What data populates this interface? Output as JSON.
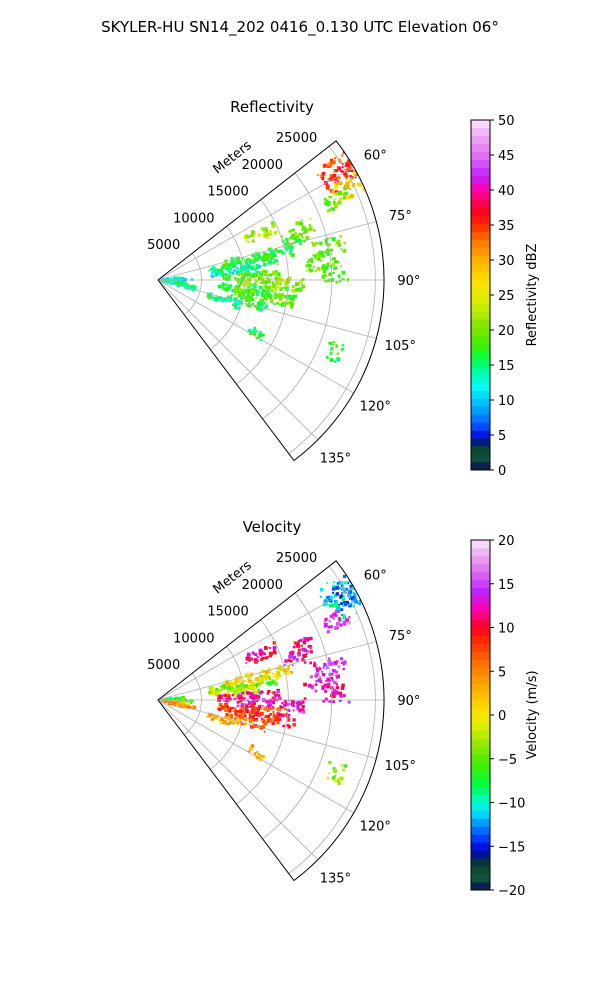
{
  "figure": {
    "suptitle": "SKYLER-HU  SN14_202  0416_0.130 UTC Elevation 06°"
  },
  "colors": {
    "grid": "#b0b0b0",
    "sector_edge": "#000000",
    "background": "#ffffff"
  },
  "chart_data": [
    {
      "type": "heatmap",
      "subtype": "polar-sector",
      "title": "Reflectivity",
      "radial_label": "Meters",
      "radial_ticks": [
        "5000",
        "10000",
        "15000",
        "20000",
        "25000"
      ],
      "radial_tick_values": [
        5000,
        10000,
        15000,
        20000,
        25000
      ],
      "rmax": 26000,
      "theta_min_deg": 52,
      "theta_max_deg": 143,
      "angle_ticks": [
        "60°",
        "75°",
        "90°",
        "105°",
        "120°",
        "135°"
      ],
      "angle_tick_values": [
        60,
        75,
        90,
        105,
        120,
        135
      ],
      "grid": true,
      "colorbar": {
        "label": "Reflectivity dBZ",
        "min": 0,
        "max": 50,
        "ticks": [
          "0",
          "5",
          "10",
          "15",
          "20",
          "25",
          "30",
          "35",
          "40",
          "45",
          "50"
        ],
        "tick_values": [
          0,
          5,
          10,
          15,
          20,
          25,
          30,
          35,
          40,
          45,
          50
        ],
        "stops": [
          {
            "v": 0,
            "c": "#0a0a5a"
          },
          {
            "v": 2,
            "c": "#0f5a3c"
          },
          {
            "v": 3.5,
            "c": "#0a3a28"
          },
          {
            "v": 4.5,
            "c": "#0000cc"
          },
          {
            "v": 6,
            "c": "#0040ff"
          },
          {
            "v": 8,
            "c": "#0090ff"
          },
          {
            "v": 10,
            "c": "#00c8ff"
          },
          {
            "v": 12,
            "c": "#00ffee"
          },
          {
            "v": 14,
            "c": "#00ffaa"
          },
          {
            "v": 16,
            "c": "#00ff40"
          },
          {
            "v": 18,
            "c": "#44ee00"
          },
          {
            "v": 21,
            "c": "#8ce600"
          },
          {
            "v": 24,
            "c": "#d8f000"
          },
          {
            "v": 27,
            "c": "#ffe000"
          },
          {
            "v": 30,
            "c": "#ffb000"
          },
          {
            "v": 33,
            "c": "#ff7000"
          },
          {
            "v": 35,
            "c": "#ff2a00"
          },
          {
            "v": 37,
            "c": "#ff0020"
          },
          {
            "v": 40,
            "c": "#ff00aa"
          },
          {
            "v": 42,
            "c": "#c020ff"
          },
          {
            "v": 45,
            "c": "#e070f0"
          },
          {
            "v": 48,
            "c": "#f0b0f4"
          },
          {
            "v": 50,
            "c": "#fbe8fb"
          }
        ]
      },
      "echo_regions": [
        {
          "th": 86,
          "r0": 300,
          "r1": 3000,
          "v": 13
        },
        {
          "th": 92,
          "r0": 400,
          "r1": 4000,
          "v": 11
        },
        {
          "th": 99,
          "r0": 300,
          "r1": 3500,
          "v": 16
        },
        {
          "th": 103,
          "r0": 500,
          "r1": 4500,
          "v": 14
        },
        {
          "th": 80,
          "r0": 6000,
          "r1": 14000,
          "v": 15
        },
        {
          "th": 77,
          "r0": 8000,
          "r1": 16000,
          "v": 17
        },
        {
          "th": 84,
          "r0": 6000,
          "r1": 12000,
          "v": 13
        },
        {
          "th": 88,
          "r0": 7000,
          "r1": 14000,
          "v": 19
        },
        {
          "th": 92,
          "r0": 9000,
          "r1": 17000,
          "v": 21
        },
        {
          "th": 96,
          "r0": 7000,
          "r1": 15000,
          "v": 17
        },
        {
          "th": 99,
          "r0": 9000,
          "r1": 16000,
          "v": 19
        },
        {
          "th": 104,
          "r0": 8000,
          "r1": 13000,
          "v": 16
        },
        {
          "th": 107,
          "r0": 6000,
          "r1": 10000,
          "v": 15
        },
        {
          "th": 70,
          "r0": 16000,
          "r1": 19000,
          "v": 20
        },
        {
          "th": 73,
          "r0": 15000,
          "r1": 18000,
          "v": 18
        },
        {
          "th": 79,
          "r0": 18000,
          "r1": 22000,
          "v": 19
        },
        {
          "th": 84,
          "r0": 17000,
          "r1": 21000,
          "v": 20
        },
        {
          "th": 88,
          "r0": 19000,
          "r1": 22000,
          "v": 18
        },
        {
          "th": 58,
          "r0": 22000,
          "r1": 26000,
          "v": 33
        },
        {
          "th": 61,
          "r0": 22000,
          "r1": 26000,
          "v": 36
        },
        {
          "th": 64,
          "r0": 22500,
          "r1": 26000,
          "v": 28
        },
        {
          "th": 66,
          "r0": 21000,
          "r1": 24000,
          "v": 20
        },
        {
          "th": 66,
          "r0": 11000,
          "r1": 15000,
          "v": 22
        },
        {
          "th": 118,
          "r0": 12000,
          "r1": 14000,
          "v": 16
        },
        {
          "th": 112,
          "r0": 21000,
          "r1": 23000,
          "v": 17
        }
      ]
    },
    {
      "type": "heatmap",
      "subtype": "polar-sector",
      "title": "Velocity",
      "radial_label": "Meters",
      "radial_ticks": [
        "5000",
        "10000",
        "15000",
        "20000",
        "25000"
      ],
      "radial_tick_values": [
        5000,
        10000,
        15000,
        20000,
        25000
      ],
      "rmax": 26000,
      "theta_min_deg": 52,
      "theta_max_deg": 143,
      "angle_ticks": [
        "60°",
        "75°",
        "90°",
        "105°",
        "120°",
        "135°"
      ],
      "angle_tick_values": [
        60,
        75,
        90,
        105,
        120,
        135
      ],
      "grid": true,
      "colorbar": {
        "label": "Velocity (m/s)",
        "min": -20,
        "max": 20,
        "ticks": [
          "−20",
          "−15",
          "−10",
          "−5",
          "0",
          "5",
          "10",
          "15",
          "20"
        ],
        "tick_values": [
          -20,
          -15,
          -10,
          -5,
          0,
          5,
          10,
          15,
          20
        ],
        "stops": [
          {
            "v": -20,
            "c": "#0a0a5a"
          },
          {
            "v": -18.5,
            "c": "#0f5a3c"
          },
          {
            "v": -17,
            "c": "#0a3a28"
          },
          {
            "v": -15.5,
            "c": "#0000cc"
          },
          {
            "v": -14,
            "c": "#0040ff"
          },
          {
            "v": -12.5,
            "c": "#0090ff"
          },
          {
            "v": -11,
            "c": "#00e8ff"
          },
          {
            "v": -9.5,
            "c": "#00ffb0"
          },
          {
            "v": -8,
            "c": "#00ff40"
          },
          {
            "v": -5.5,
            "c": "#44ee00"
          },
          {
            "v": -3,
            "c": "#a0e800"
          },
          {
            "v": -1,
            "c": "#e0f000"
          },
          {
            "v": 0.5,
            "c": "#ffe000"
          },
          {
            "v": 3,
            "c": "#ffb000"
          },
          {
            "v": 6,
            "c": "#ff7000"
          },
          {
            "v": 8.5,
            "c": "#ff2a00"
          },
          {
            "v": 10,
            "c": "#ff0020"
          },
          {
            "v": 12,
            "c": "#ff00aa"
          },
          {
            "v": 14,
            "c": "#c020ff"
          },
          {
            "v": 16.5,
            "c": "#e070f0"
          },
          {
            "v": 18.5,
            "c": "#f0b0f4"
          },
          {
            "v": 20,
            "c": "#fbe8fb"
          }
        ]
      },
      "echo_regions": [
        {
          "th": 86,
          "r0": 300,
          "r1": 3000,
          "v": -7
        },
        {
          "th": 92,
          "r0": 400,
          "r1": 4000,
          "v": -5
        },
        {
          "th": 99,
          "r0": 300,
          "r1": 3500,
          "v": 2
        },
        {
          "th": 103,
          "r0": 500,
          "r1": 4500,
          "v": 4
        },
        {
          "th": 80,
          "r0": 6000,
          "r1": 14000,
          "v": -4
        },
        {
          "th": 77,
          "r0": 8000,
          "r1": 16000,
          "v": 1
        },
        {
          "th": 84,
          "r0": 6000,
          "r1": 12000,
          "v": -2
        },
        {
          "th": 88,
          "r0": 7000,
          "r1": 14000,
          "v": 12
        },
        {
          "th": 92,
          "r0": 9000,
          "r1": 17000,
          "v": 13
        },
        {
          "th": 96,
          "r0": 7000,
          "r1": 15000,
          "v": 8
        },
        {
          "th": 99,
          "r0": 9000,
          "r1": 16000,
          "v": 9
        },
        {
          "th": 104,
          "r0": 8000,
          "r1": 13000,
          "v": 6
        },
        {
          "th": 107,
          "r0": 6000,
          "r1": 10000,
          "v": 3
        },
        {
          "th": 70,
          "r0": 16000,
          "r1": 19000,
          "v": 11
        },
        {
          "th": 73,
          "r0": 15000,
          "r1": 18000,
          "v": 12
        },
        {
          "th": 79,
          "r0": 18000,
          "r1": 22000,
          "v": 14
        },
        {
          "th": 84,
          "r0": 17000,
          "r1": 21000,
          "v": 13
        },
        {
          "th": 88,
          "r0": 19000,
          "r1": 22000,
          "v": 12
        },
        {
          "th": 58,
          "r0": 22000,
          "r1": 26000,
          "v": -12
        },
        {
          "th": 61,
          "r0": 22000,
          "r1": 26000,
          "v": -13
        },
        {
          "th": 64,
          "r0": 22500,
          "r1": 26000,
          "v": -11
        },
        {
          "th": 66,
          "r0": 21000,
          "r1": 24000,
          "v": 15
        },
        {
          "th": 66,
          "r0": 11000,
          "r1": 15000,
          "v": 11
        },
        {
          "th": 118,
          "r0": 12000,
          "r1": 14000,
          "v": 3
        },
        {
          "th": 112,
          "r0": 21000,
          "r1": 23000,
          "v": -3
        }
      ]
    }
  ]
}
